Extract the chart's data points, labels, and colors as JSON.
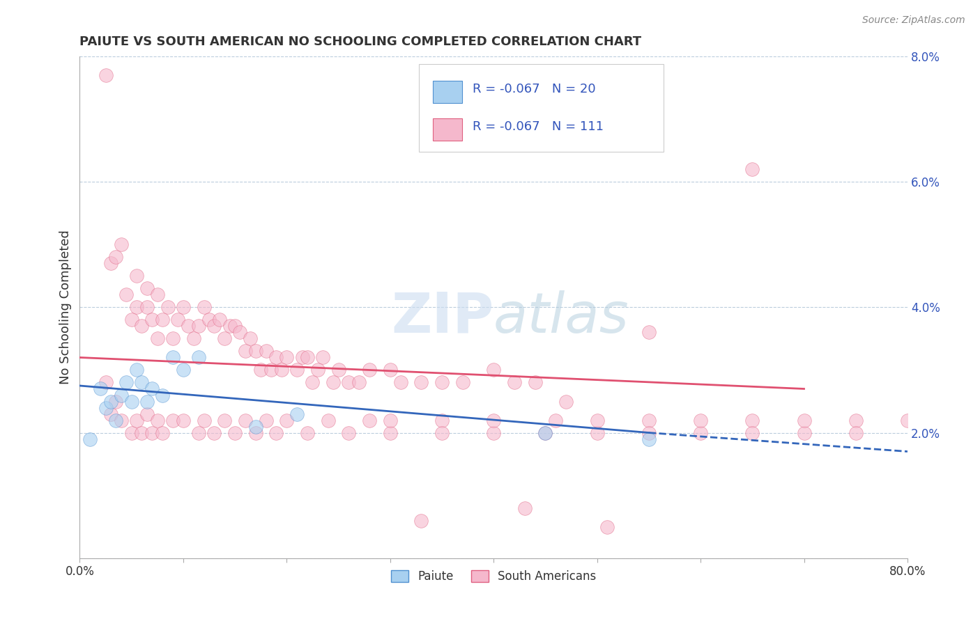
{
  "title": "PAIUTE VS SOUTH AMERICAN NO SCHOOLING COMPLETED CORRELATION CHART",
  "source_text": "Source: ZipAtlas.com",
  "ylabel": "No Schooling Completed",
  "xlim": [
    0,
    0.8
  ],
  "ylim": [
    0,
    0.08
  ],
  "paiute_color": "#a8d0f0",
  "paiute_edge_color": "#5090d0",
  "south_color": "#f5b8cc",
  "south_edge_color": "#e06080",
  "paiute_line_color": "#3366bb",
  "south_line_color": "#e05070",
  "legend_text_color": "#3355bb",
  "watermark_zip": "ZIP",
  "watermark_atlas": "atlas",
  "background_color": "#ffffff",
  "grid_color": "#bbccdd",
  "paiute_x": [
    0.01,
    0.02,
    0.025,
    0.03,
    0.035,
    0.04,
    0.045,
    0.05,
    0.055,
    0.06,
    0.065,
    0.07,
    0.08,
    0.09,
    0.1,
    0.115,
    0.17,
    0.21,
    0.45,
    0.55
  ],
  "paiute_y": [
    0.019,
    0.027,
    0.024,
    0.025,
    0.022,
    0.026,
    0.028,
    0.025,
    0.03,
    0.028,
    0.025,
    0.027,
    0.026,
    0.032,
    0.03,
    0.032,
    0.021,
    0.023,
    0.02,
    0.019
  ],
  "south_x": [
    0.025,
    0.03,
    0.035,
    0.04,
    0.045,
    0.05,
    0.055,
    0.055,
    0.06,
    0.065,
    0.065,
    0.07,
    0.075,
    0.075,
    0.08,
    0.085,
    0.09,
    0.095,
    0.1,
    0.105,
    0.11,
    0.115,
    0.12,
    0.125,
    0.13,
    0.135,
    0.14,
    0.145,
    0.15,
    0.155,
    0.16,
    0.165,
    0.17,
    0.175,
    0.18,
    0.185,
    0.19,
    0.195,
    0.2,
    0.21,
    0.215,
    0.22,
    0.225,
    0.23,
    0.235,
    0.245,
    0.25,
    0.26,
    0.27,
    0.28,
    0.3,
    0.31,
    0.33,
    0.35,
    0.37,
    0.4,
    0.42,
    0.44,
    0.47,
    0.55,
    0.65,
    0.025,
    0.03,
    0.035,
    0.04,
    0.05,
    0.055,
    0.06,
    0.065,
    0.07,
    0.075,
    0.08,
    0.09,
    0.1,
    0.115,
    0.12,
    0.13,
    0.14,
    0.15,
    0.16,
    0.17,
    0.18,
    0.19,
    0.2,
    0.22,
    0.24,
    0.26,
    0.28,
    0.3,
    0.35,
    0.4,
    0.46,
    0.5,
    0.55,
    0.6,
    0.65,
    0.7,
    0.75,
    0.3,
    0.35,
    0.4,
    0.45,
    0.5,
    0.55,
    0.6,
    0.65,
    0.7,
    0.75,
    0.8,
    0.33,
    0.43,
    0.51
  ],
  "south_y": [
    0.077,
    0.047,
    0.048,
    0.05,
    0.042,
    0.038,
    0.04,
    0.045,
    0.037,
    0.04,
    0.043,
    0.038,
    0.042,
    0.035,
    0.038,
    0.04,
    0.035,
    0.038,
    0.04,
    0.037,
    0.035,
    0.037,
    0.04,
    0.038,
    0.037,
    0.038,
    0.035,
    0.037,
    0.037,
    0.036,
    0.033,
    0.035,
    0.033,
    0.03,
    0.033,
    0.03,
    0.032,
    0.03,
    0.032,
    0.03,
    0.032,
    0.032,
    0.028,
    0.03,
    0.032,
    0.028,
    0.03,
    0.028,
    0.028,
    0.03,
    0.03,
    0.028,
    0.028,
    0.028,
    0.028,
    0.03,
    0.028,
    0.028,
    0.025,
    0.036,
    0.062,
    0.028,
    0.023,
    0.025,
    0.022,
    0.02,
    0.022,
    0.02,
    0.023,
    0.02,
    0.022,
    0.02,
    0.022,
    0.022,
    0.02,
    0.022,
    0.02,
    0.022,
    0.02,
    0.022,
    0.02,
    0.022,
    0.02,
    0.022,
    0.02,
    0.022,
    0.02,
    0.022,
    0.02,
    0.022,
    0.02,
    0.022,
    0.02,
    0.022,
    0.02,
    0.022,
    0.02,
    0.022,
    0.022,
    0.02,
    0.022,
    0.02,
    0.022,
    0.02,
    0.022,
    0.02,
    0.022,
    0.02,
    0.022,
    0.006,
    0.008,
    0.005
  ]
}
